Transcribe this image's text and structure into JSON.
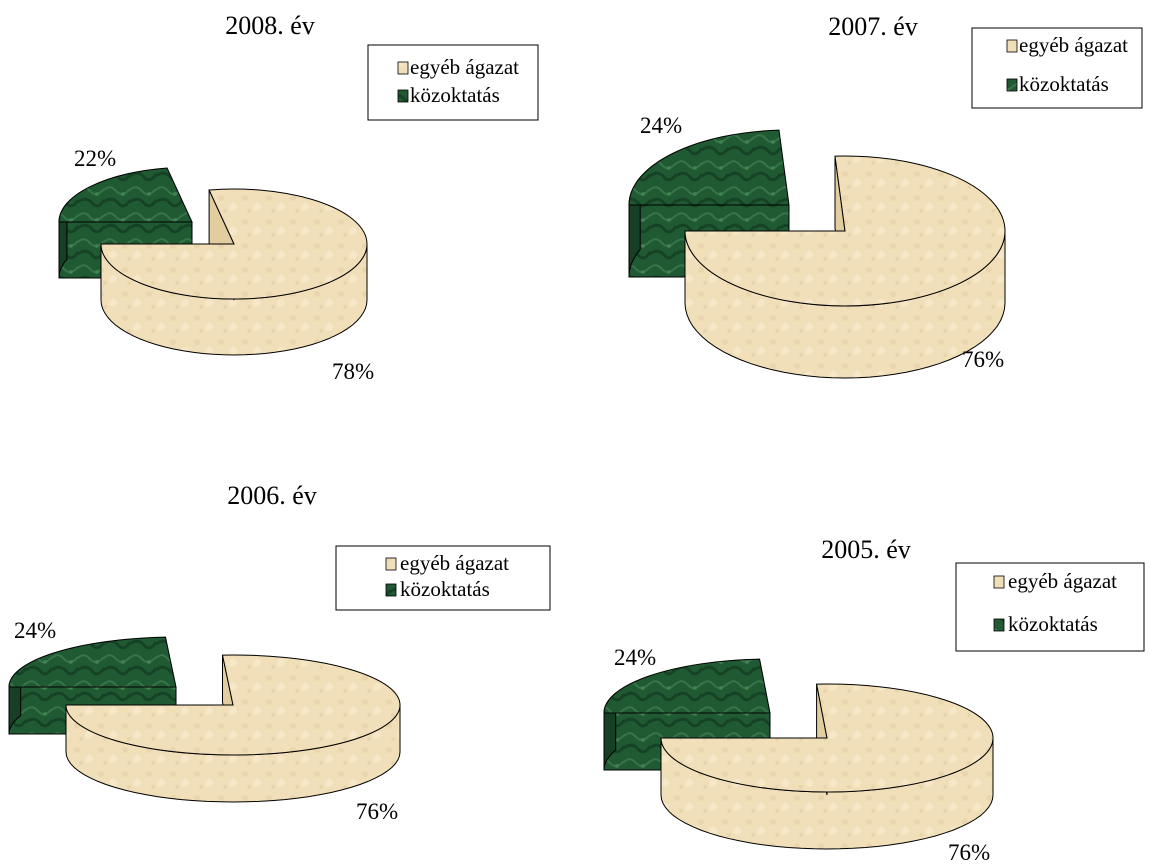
{
  "colors": {
    "egyeb": "#f0dfb8",
    "egyeb_dark": "#e2cd9e",
    "kozok": "#1f5a33",
    "kozok_dark": "#163f25",
    "outline": "#000000"
  },
  "chart_data": [
    {
      "type": "pie",
      "title": "2008. év",
      "categories": [
        "egyéb ágazat",
        "közoktatás"
      ],
      "values": [
        78,
        22
      ],
      "data_labels": [
        "78%",
        "22%"
      ],
      "legend": [
        "egyéb ágazat",
        "közoktatás"
      ],
      "legend_position": "top-right",
      "style": "3d-exploded"
    },
    {
      "type": "pie",
      "title": "2007. év",
      "categories": [
        "egyéb ágazat",
        "közoktatás"
      ],
      "values": [
        76,
        24
      ],
      "data_labels": [
        "76%",
        "24%"
      ],
      "legend": [
        "egyéb ágazat",
        "közoktatás"
      ],
      "legend_position": "top-right",
      "style": "3d-exploded"
    },
    {
      "type": "pie",
      "title": "2006. év",
      "categories": [
        "egyéb ágazat",
        "közoktatás"
      ],
      "values": [
        76,
        24
      ],
      "data_labels": [
        "76%",
        "24%"
      ],
      "legend": [
        "egyéb ágazat",
        "közoktatás"
      ],
      "legend_position": "top-right",
      "style": "3d-exploded"
    },
    {
      "type": "pie",
      "title": "2005. év",
      "categories": [
        "egyéb ágazat",
        "közoktatás"
      ],
      "values": [
        76,
        24
      ],
      "data_labels": [
        "76%",
        "24%"
      ],
      "legend": [
        "egyéb ágazat",
        "közoktatás"
      ],
      "legend_position": "top-right",
      "style": "3d-exploded"
    }
  ]
}
